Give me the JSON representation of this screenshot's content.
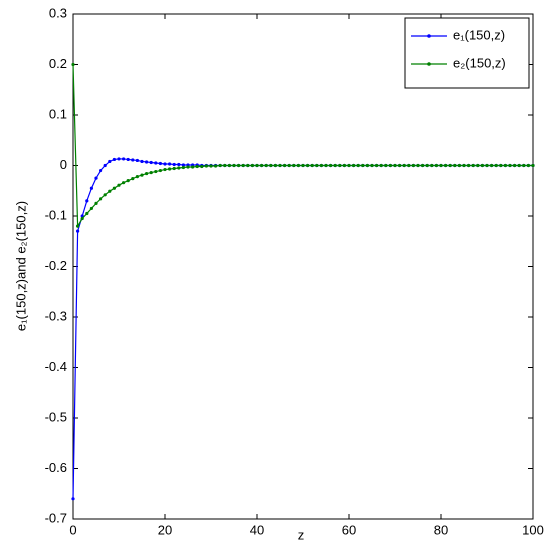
{
  "chart_data": {
    "type": "line",
    "x_label": "z",
    "y_label": "e₁(150,z)and e₂(150,z)",
    "x": [
      0,
      1,
      2,
      3,
      4,
      5,
      6,
      7,
      8,
      9,
      10,
      11,
      12,
      13,
      14,
      15,
      16,
      17,
      18,
      19,
      20,
      21,
      22,
      23,
      24,
      25,
      26,
      27,
      28,
      29,
      30,
      31,
      32,
      33,
      34,
      35,
      36,
      37,
      38,
      39,
      40,
      41,
      42,
      43,
      44,
      45,
      46,
      47,
      48,
      49,
      50,
      51,
      52,
      53,
      54,
      55,
      56,
      57,
      58,
      59,
      60,
      61,
      62,
      63,
      64,
      65,
      66,
      67,
      68,
      69,
      70,
      71,
      72,
      73,
      74,
      75,
      76,
      77,
      78,
      79,
      80,
      81,
      82,
      83,
      84,
      85,
      86,
      87,
      88,
      89,
      90,
      91,
      92,
      93,
      94,
      95,
      96,
      97,
      98,
      99,
      100
    ],
    "series": [
      {
        "name": "e₁(150,z)",
        "color": "#0000ff",
        "values": [
          -0.66,
          -0.13,
          -0.1,
          -0.07,
          -0.045,
          -0.025,
          -0.01,
          0,
          0.008,
          0.012,
          0.013,
          0.013,
          0.012,
          0.011,
          0.01,
          0.008,
          0.007,
          0.006,
          0.005,
          0.004,
          0.003,
          0.003,
          0.002,
          0.002,
          0.001,
          0.001,
          0.001,
          0.001,
          0,
          0,
          0,
          0,
          0,
          0,
          0,
          0,
          0,
          0,
          0,
          0,
          0,
          0,
          0,
          0,
          0,
          0,
          0,
          0,
          0,
          0,
          0,
          0,
          0,
          0,
          0,
          0,
          0,
          0,
          0,
          0,
          0,
          0,
          0,
          0,
          0,
          0,
          0,
          0,
          0,
          0,
          0,
          0,
          0,
          0,
          0,
          0,
          0,
          0,
          0,
          0,
          0,
          0,
          0,
          0,
          0,
          0,
          0,
          0,
          0,
          0,
          0,
          0,
          0,
          0,
          0,
          0,
          0,
          0,
          0,
          0,
          0
        ]
      },
      {
        "name": "e₂(150,z)",
        "color": "#008000",
        "values": [
          0.2,
          -0.12,
          -0.105,
          -0.095,
          -0.085,
          -0.075,
          -0.066,
          -0.058,
          -0.051,
          -0.045,
          -0.039,
          -0.034,
          -0.03,
          -0.026,
          -0.022,
          -0.019,
          -0.016,
          -0.014,
          -0.012,
          -0.01,
          -0.008,
          -0.007,
          -0.006,
          -0.005,
          -0.004,
          -0.003,
          -0.003,
          -0.002,
          -0.002,
          -0.001,
          -0.001,
          -0.001,
          0,
          0,
          0,
          0,
          0,
          0,
          0,
          0,
          0,
          0,
          0,
          0,
          0,
          0,
          0,
          0,
          0,
          0,
          0,
          0,
          0,
          0,
          0,
          0,
          0,
          0,
          0,
          0,
          0,
          0,
          0,
          0,
          0,
          0,
          0,
          0,
          0,
          0,
          0,
          0,
          0,
          0,
          0,
          0,
          0,
          0,
          0,
          0,
          0,
          0,
          0,
          0,
          0,
          0,
          0,
          0,
          0,
          0,
          0,
          0,
          0,
          0,
          0,
          0,
          0,
          0,
          0,
          0,
          0
        ]
      }
    ],
    "xlim": [
      0,
      100
    ],
    "xticks": [
      0,
      20,
      40,
      60,
      80,
      100
    ],
    "ylim": [
      -0.7,
      0.3
    ],
    "yticks": [
      -0.7,
      -0.6,
      -0.5,
      -0.4,
      -0.3,
      -0.2,
      -0.1,
      0,
      0.1,
      0.2,
      0.3
    ],
    "grid": false,
    "legend": "top-right"
  }
}
